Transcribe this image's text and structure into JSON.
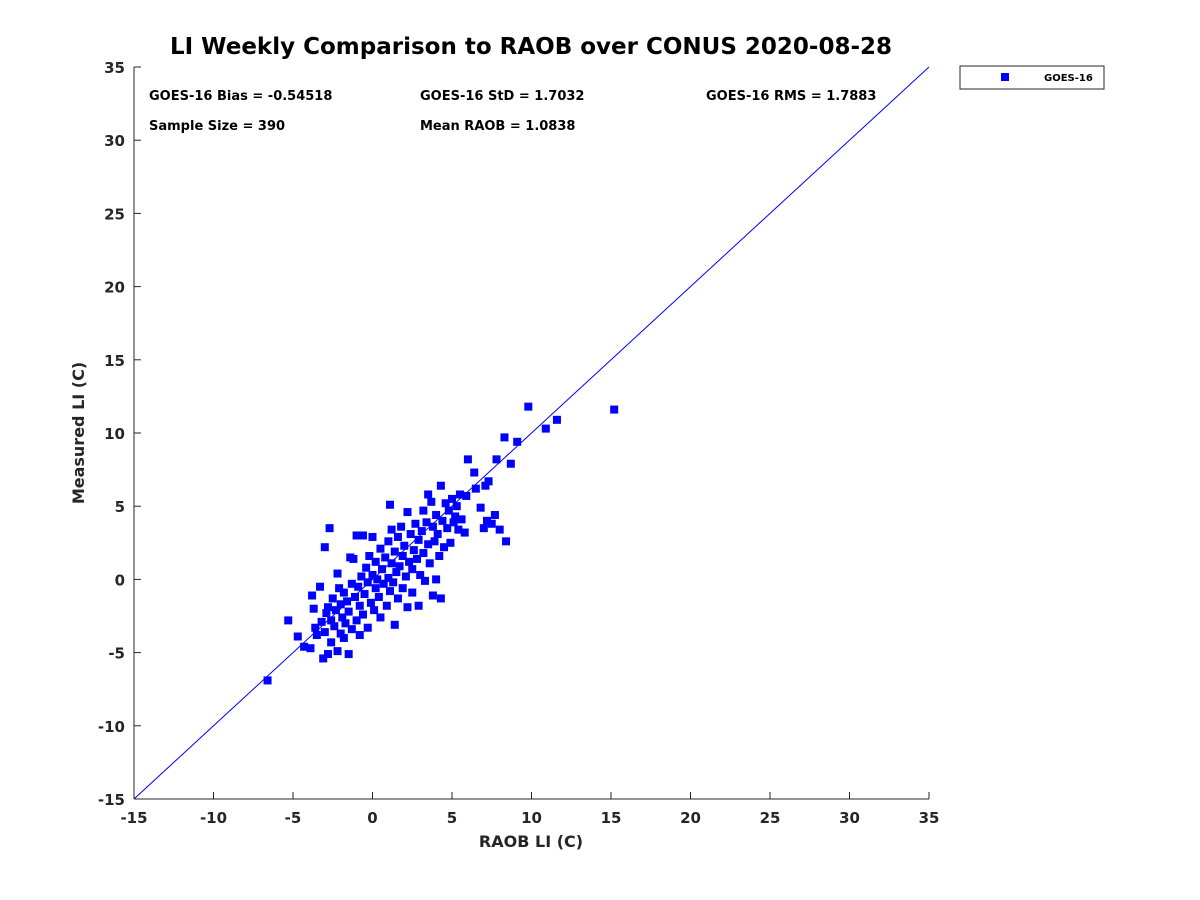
{
  "chart_data": {
    "type": "scatter",
    "title": "LI Weekly Comparison to RAOB over CONUS 2020-08-28",
    "xlabel": "RAOB LI (C)",
    "ylabel": "Measured LI (C)",
    "xlim": [
      -15,
      35
    ],
    "ylim": [
      -15,
      35
    ],
    "xticks": [
      -15,
      -10,
      -5,
      0,
      5,
      10,
      15,
      20,
      25,
      30,
      35
    ],
    "yticks": [
      -15,
      -10,
      -5,
      0,
      5,
      10,
      15,
      20,
      25,
      30,
      35
    ],
    "grid": false,
    "reference_line": {
      "name": "one-to-one",
      "from": [
        -15,
        -15
      ],
      "to": [
        35,
        35
      ],
      "color": "#0000ff"
    },
    "legend": {
      "location": "outside-top-right",
      "entries": [
        "GOES-16"
      ]
    },
    "stats": [
      {
        "label": "GOES-16 Bias = -0.54518"
      },
      {
        "label": "GOES-16 StD = 1.7032"
      },
      {
        "label": "GOES-16 RMS = 1.7883"
      },
      {
        "label": "Sample Size = 390"
      },
      {
        "label": "Mean RAOB = 1.0838"
      }
    ],
    "series": [
      {
        "name": "GOES-16",
        "color": "#0000ff",
        "marker": "square",
        "points": [
          [
            -6.6,
            -6.9
          ],
          [
            -5.3,
            -2.8
          ],
          [
            -4.7,
            -3.9
          ],
          [
            -4.3,
            -4.6
          ],
          [
            -3.9,
            -4.7
          ],
          [
            -3.8,
            -1.1
          ],
          [
            -3.7,
            -2.0
          ],
          [
            -3.6,
            -3.3
          ],
          [
            -3.5,
            -3.8
          ],
          [
            -3.3,
            -0.5
          ],
          [
            -3.2,
            -2.9
          ],
          [
            -3.1,
            -5.4
          ],
          [
            -3.0,
            -3.6
          ],
          [
            -3.0,
            2.2
          ],
          [
            -2.9,
            -2.3
          ],
          [
            -2.8,
            -5.1
          ],
          [
            -2.8,
            -1.9
          ],
          [
            -2.7,
            3.5
          ],
          [
            -2.6,
            -4.3
          ],
          [
            -2.6,
            -2.8
          ],
          [
            -2.5,
            -1.3
          ],
          [
            -2.4,
            -3.2
          ],
          [
            -2.3,
            -2.1
          ],
          [
            -2.2,
            -4.9
          ],
          [
            -2.2,
            0.4
          ],
          [
            -2.1,
            -0.6
          ],
          [
            -2.0,
            -3.7
          ],
          [
            -2.0,
            -1.7
          ],
          [
            -1.9,
            -2.6
          ],
          [
            -1.8,
            -4.0
          ],
          [
            -1.8,
            -0.9
          ],
          [
            -1.7,
            -3.0
          ],
          [
            -1.6,
            -1.5
          ],
          [
            -1.5,
            -5.1
          ],
          [
            -1.5,
            -2.2
          ],
          [
            -1.4,
            1.5
          ],
          [
            -1.3,
            -3.4
          ],
          [
            -1.3,
            -0.3
          ],
          [
            -1.2,
            1.4
          ],
          [
            -1.1,
            -1.2
          ],
          [
            -1.0,
            -2.8
          ],
          [
            -1.0,
            3.0
          ],
          [
            -0.9,
            -0.5
          ],
          [
            -0.8,
            -3.8
          ],
          [
            -0.8,
            -1.8
          ],
          [
            -0.7,
            0.2
          ],
          [
            -0.6,
            3.0
          ],
          [
            -0.6,
            -2.4
          ],
          [
            -0.5,
            -1.0
          ],
          [
            -0.4,
            0.8
          ],
          [
            -0.3,
            -3.3
          ],
          [
            -0.3,
            -0.2
          ],
          [
            -0.2,
            1.6
          ],
          [
            -0.1,
            -1.6
          ],
          [
            0.0,
            0.3
          ],
          [
            0.0,
            2.9
          ],
          [
            0.1,
            -2.1
          ],
          [
            0.2,
            -0.6
          ],
          [
            0.2,
            1.2
          ],
          [
            0.3,
            0.0
          ],
          [
            0.4,
            -1.2
          ],
          [
            0.5,
            2.1
          ],
          [
            0.5,
            -2.6
          ],
          [
            0.6,
            0.7
          ],
          [
            0.7,
            -0.3
          ],
          [
            0.8,
            1.5
          ],
          [
            0.9,
            -1.8
          ],
          [
            1.0,
            0.1
          ],
          [
            1.0,
            2.6
          ],
          [
            1.1,
            -0.8
          ],
          [
            1.1,
            5.1
          ],
          [
            1.2,
            3.4
          ],
          [
            1.2,
            1.1
          ],
          [
            1.3,
            -0.2
          ],
          [
            1.4,
            -3.1
          ],
          [
            1.4,
            1.9
          ],
          [
            1.5,
            0.5
          ],
          [
            1.6,
            2.9
          ],
          [
            1.6,
            -1.3
          ],
          [
            1.7,
            0.9
          ],
          [
            1.8,
            3.6
          ],
          [
            1.9,
            1.6
          ],
          [
            1.9,
            -0.6
          ],
          [
            2.0,
            2.3
          ],
          [
            2.1,
            0.2
          ],
          [
            2.2,
            4.6
          ],
          [
            2.2,
            -1.9
          ],
          [
            2.3,
            1.2
          ],
          [
            2.4,
            3.1
          ],
          [
            2.5,
            0.7
          ],
          [
            2.5,
            -0.9
          ],
          [
            2.6,
            2.0
          ],
          [
            2.7,
            3.8
          ],
          [
            2.8,
            1.4
          ],
          [
            2.9,
            -1.8
          ],
          [
            2.9,
            2.7
          ],
          [
            3.0,
            0.3
          ],
          [
            3.1,
            3.3
          ],
          [
            3.2,
            4.7
          ],
          [
            3.2,
            1.8
          ],
          [
            3.3,
            -0.1
          ],
          [
            3.4,
            3.9
          ],
          [
            3.5,
            5.8
          ],
          [
            3.5,
            2.4
          ],
          [
            3.6,
            1.1
          ],
          [
            3.7,
            5.3
          ],
          [
            3.8,
            3.6
          ],
          [
            3.8,
            -1.1
          ],
          [
            3.9,
            2.6
          ],
          [
            4.0,
            4.4
          ],
          [
            4.0,
            0.0
          ],
          [
            4.1,
            3.1
          ],
          [
            4.2,
            1.6
          ],
          [
            4.3,
            6.4
          ],
          [
            4.3,
            -1.3
          ],
          [
            4.4,
            4.0
          ],
          [
            4.5,
            2.2
          ],
          [
            4.6,
            5.2
          ],
          [
            4.7,
            3.5
          ],
          [
            4.8,
            4.7
          ],
          [
            4.9,
            2.5
          ],
          [
            5.0,
            5.5
          ],
          [
            5.1,
            3.9
          ],
          [
            5.2,
            4.3
          ],
          [
            5.3,
            5.0
          ],
          [
            5.4,
            3.4
          ],
          [
            5.5,
            5.8
          ],
          [
            5.6,
            4.1
          ],
          [
            5.8,
            3.2
          ],
          [
            5.9,
            5.7
          ],
          [
            6.0,
            8.2
          ],
          [
            6.4,
            7.3
          ],
          [
            6.5,
            6.2
          ],
          [
            6.8,
            4.9
          ],
          [
            7.0,
            3.5
          ],
          [
            7.1,
            6.4
          ],
          [
            7.2,
            4.0
          ],
          [
            7.3,
            6.7
          ],
          [
            7.5,
            3.8
          ],
          [
            7.7,
            4.4
          ],
          [
            7.8,
            8.2
          ],
          [
            8.0,
            3.4
          ],
          [
            8.3,
            9.7
          ],
          [
            8.4,
            2.6
          ],
          [
            8.7,
            7.9
          ],
          [
            9.1,
            9.4
          ],
          [
            9.8,
            11.8
          ],
          [
            10.9,
            10.3
          ],
          [
            11.6,
            10.9
          ],
          [
            15.2,
            11.6
          ]
        ]
      }
    ]
  }
}
